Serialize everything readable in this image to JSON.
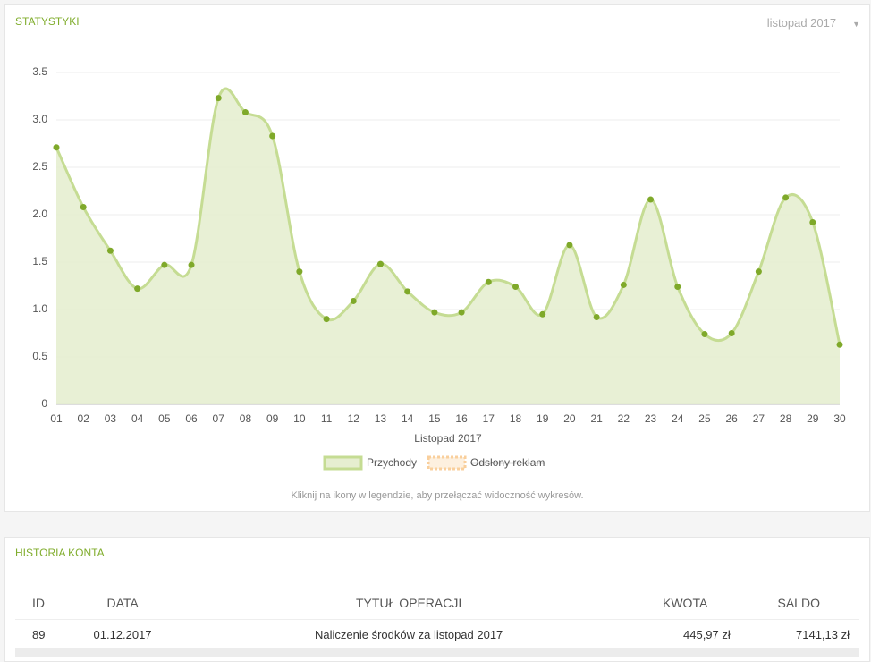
{
  "stats_panel": {
    "title": "STATYSTYKI",
    "period": "listopad 2017"
  },
  "chart_data": {
    "type": "area",
    "x_label": "Listopad 2017",
    "categories": [
      "01",
      "02",
      "03",
      "04",
      "05",
      "06",
      "07",
      "08",
      "09",
      "10",
      "11",
      "12",
      "13",
      "14",
      "15",
      "16",
      "17",
      "18",
      "19",
      "20",
      "21",
      "22",
      "23",
      "24",
      "25",
      "26",
      "27",
      "28",
      "29",
      "30"
    ],
    "series": [
      {
        "name": "Przychody",
        "color": "#c5dc93",
        "point_color": "#7fa92a",
        "fill": "#e6eed0",
        "values": [
          2.71,
          2.08,
          1.62,
          1.22,
          1.47,
          1.47,
          3.23,
          3.08,
          2.83,
          1.4,
          0.9,
          1.09,
          1.48,
          1.19,
          0.97,
          0.97,
          1.29,
          1.24,
          0.95,
          1.68,
          0.92,
          1.26,
          2.16,
          1.24,
          0.74,
          0.75,
          1.4,
          2.18,
          1.92,
          0.63
        ]
      },
      {
        "name": "Odsłony reklam",
        "color": "#f9cf9c",
        "hidden": true,
        "values": [
          null,
          null,
          null,
          null,
          null,
          null,
          null,
          null,
          null,
          null,
          null,
          null,
          null,
          null,
          null,
          null,
          null,
          null,
          null,
          null,
          null,
          null,
          null,
          null,
          null,
          null,
          null,
          null,
          null,
          null
        ]
      }
    ],
    "ylim": [
      0,
      3.5
    ],
    "yticks": [
      0,
      0.5,
      {
        "value": 1,
        "label": "1.0"
      },
      1.5,
      {
        "value": 2,
        "label": "2.0"
      },
      2.5,
      {
        "value": 3,
        "label": "3.0"
      },
      3.5
    ],
    "grid": true
  },
  "hint": "Kliknij na ikony w legendzie, aby przełączać widoczność wykresów.",
  "history": {
    "title": "HISTORIA KONTA",
    "table": {
      "headers": [
        "ID",
        "DATA",
        "TYTUŁ OPERACJI",
        "KWOTA",
        "SALDO"
      ],
      "rows": [
        [
          "89",
          "01.12.2017",
          "Naliczenie środków za listopad 2017",
          "445,97 zł",
          "7141,13 zł"
        ]
      ]
    }
  }
}
